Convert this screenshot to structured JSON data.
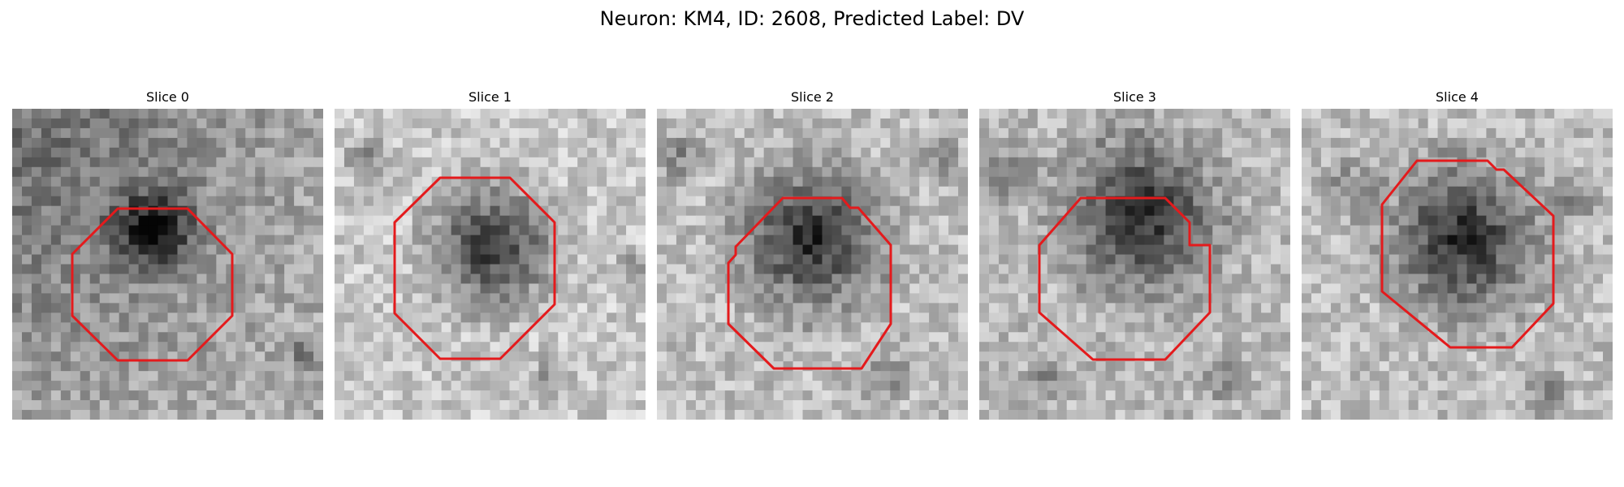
{
  "figure": {
    "title": "Neuron: KM4, ID: 2608, Predicted Label: DV"
  },
  "panels": [
    {
      "title": "Slice 0",
      "outline": "red-octagon"
    },
    {
      "title": "Slice 1",
      "outline": "red-octagon"
    },
    {
      "title": "Slice 2",
      "outline": "red-octagon"
    },
    {
      "title": "Slice 3",
      "outline": "red-octagon"
    },
    {
      "title": "Slice 4",
      "outline": "red-octagon"
    }
  ],
  "colors": {
    "outline": "#e41a1c"
  }
}
